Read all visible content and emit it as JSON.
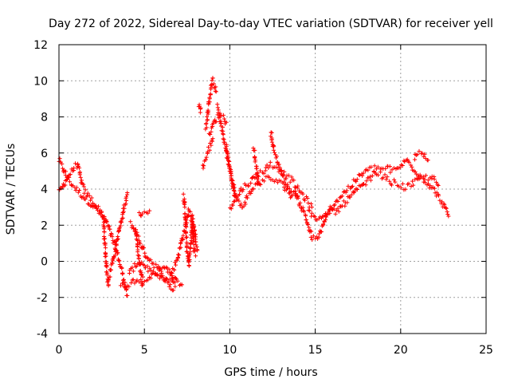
{
  "chart_data": {
    "type": "scatter",
    "title": "Day 272 of 2022, Sidereal Day-to-day VTEC variation (SDTVAR) for receiver yell",
    "xlabel": "GPS time / hours",
    "ylabel": "SDTVAR / TECUs",
    "xlim": [
      0,
      25
    ],
    "ylim": [
      -4,
      12
    ],
    "xticks": [
      "0",
      "5",
      "10",
      "15",
      "20",
      "25"
    ],
    "yticks": [
      "-4",
      "-2",
      "0",
      "2",
      "4",
      "6",
      "8",
      "10",
      "12"
    ],
    "grid": true,
    "marker": "+",
    "series": [
      {
        "name": "SDTVAR",
        "color": "#ff0000",
        "segments": [
          {
            "x": [
              0.0,
              0.2,
              0.5,
              0.9,
              1.4,
              2.0,
              2.5,
              2.9,
              3.3,
              3.7,
              4.0
            ],
            "y": [
              5.6,
              5.2,
              4.6,
              4.1,
              3.6,
              3.1,
              2.6,
              1.9,
              0.8,
              -0.6,
              -1.9
            ]
          },
          {
            "x": [
              0.0,
              0.3,
              0.6,
              0.9,
              1.1
            ],
            "y": [
              3.8,
              4.3,
              4.8,
              5.2,
              5.4
            ]
          },
          {
            "x": [
              1.1,
              1.2,
              1.3,
              1.5,
              1.9,
              2.3,
              2.6,
              2.8
            ],
            "y": [
              5.3,
              4.9,
              4.4,
              3.9,
              3.4,
              2.9,
              2.5,
              2.2
            ]
          },
          {
            "x": [
              2.6,
              2.7,
              2.8,
              2.9
            ],
            "y": [
              2.4,
              0.6,
              -0.6,
              -1.3
            ]
          },
          {
            "x": [
              2.9,
              3.2,
              3.5,
              3.8,
              4.0
            ],
            "y": [
              -1.0,
              0.2,
              1.6,
              2.9,
              3.8
            ]
          },
          {
            "x": [
              3.6,
              3.9,
              4.2,
              4.5,
              4.8,
              5.1,
              5.4,
              5.8,
              6.2,
              6.6,
              6.9,
              7.2
            ],
            "y": [
              -1.4,
              -1.3,
              -1.2,
              -1.0,
              -1.0,
              -0.9,
              -0.8,
              -0.9,
              -1.0,
              -0.9,
              -1.1,
              -1.3
            ]
          },
          {
            "x": [
              4.1,
              4.4,
              4.7,
              5.0,
              5.3,
              5.6,
              5.9,
              6.2,
              6.5,
              6.8
            ],
            "y": [
              -0.7,
              -0.3,
              0.0,
              -0.2,
              -0.5,
              -0.8,
              -0.6,
              -0.3,
              -0.7,
              -1.4
            ]
          },
          {
            "x": [
              4.2,
              4.4,
              4.6,
              4.8,
              5.0,
              5.2,
              5.5,
              5.8,
              6.1,
              6.4,
              6.7
            ],
            "y": [
              2.1,
              1.8,
              1.4,
              0.9,
              0.5,
              0.2,
              -0.1,
              -0.4,
              -0.8,
              -1.2,
              -1.6
            ]
          },
          {
            "x": [
              4.5,
              4.6,
              4.7,
              4.8,
              4.9
            ],
            "y": [
              1.7,
              0.9,
              0.0,
              -0.7,
              -1.3
            ]
          },
          {
            "x": [
              4.7,
              4.9,
              5.1,
              5.3
            ],
            "y": [
              2.8,
              2.6,
              2.7,
              2.8
            ]
          },
          {
            "x": [
              6.6,
              6.8,
              7.0,
              7.2,
              7.4,
              7.6,
              7.8,
              8.0
            ],
            "y": [
              -0.7,
              -0.2,
              0.4,
              1.2,
              2.0,
              2.8,
              2.3,
              1.5
            ]
          },
          {
            "x": [
              7.3,
              7.4,
              7.5,
              7.6,
              7.7,
              7.8,
              7.9,
              8.0
            ],
            "y": [
              3.6,
              2.2,
              0.6,
              -0.2,
              0.9,
              2.1,
              0.7,
              0.3
            ]
          },
          {
            "x": [
              7.8,
              7.9,
              8.0,
              8.1
            ],
            "y": [
              2.6,
              1.7,
              1.0,
              0.6
            ]
          },
          {
            "x": [
              8.2,
              8.25,
              8.3
            ],
            "y": [
              8.7,
              8.4,
              8.5
            ]
          },
          {
            "x": [
              8.4,
              8.6,
              8.8,
              9.0
            ],
            "y": [
              5.2,
              5.7,
              6.3,
              6.8
            ]
          },
          {
            "x": [
              8.6,
              8.7,
              8.8,
              8.9,
              9.0,
              9.1,
              9.2
            ],
            "y": [
              7.4,
              8.1,
              8.9,
              9.6,
              10.1,
              9.7,
              9.4
            ]
          },
          {
            "x": [
              8.8,
              9.0,
              9.2,
              9.4,
              9.6,
              9.8
            ],
            "y": [
              7.1,
              7.5,
              7.9,
              8.1,
              8.0,
              7.7
            ]
          },
          {
            "x": [
              9.3,
              9.5,
              9.7,
              9.9,
              10.1,
              10.3
            ],
            "y": [
              8.6,
              7.6,
              6.6,
              5.6,
              4.6,
              3.6
            ]
          },
          {
            "x": [
              9.8,
              10.0,
              10.2,
              10.4,
              10.7,
              11.0,
              11.4,
              11.8,
              12.2,
              12.6,
              13.0,
              13.5,
              14.0
            ],
            "y": [
              6.3,
              5.1,
              4.2,
              3.4,
              3.0,
              3.5,
              4.1,
              4.4,
              4.6,
              4.5,
              4.3,
              3.9,
              3.5
            ]
          },
          {
            "x": [
              10.0,
              10.4,
              10.8,
              11.2,
              11.6,
              12.0,
              12.4,
              12.8,
              13.2,
              13.6,
              14.0,
              14.4,
              14.8
            ],
            "y": [
              3.0,
              3.6,
              4.1,
              4.4,
              4.8,
              5.0,
              5.4,
              5.2,
              4.8,
              4.5,
              4.0,
              3.5,
              3.0
            ]
          },
          {
            "x": [
              11.4,
              11.5,
              11.6,
              11.7
            ],
            "y": [
              6.2,
              5.6,
              4.9,
              4.3
            ]
          },
          {
            "x": [
              12.4,
              12.5,
              12.6,
              12.8,
              13.0,
              13.3,
              13.6
            ],
            "y": [
              7.2,
              6.6,
              6.0,
              5.5,
              5.0,
              4.3,
              3.6
            ]
          },
          {
            "x": [
              13.8,
              14.0,
              14.2,
              14.4,
              14.6,
              14.8,
              15.0,
              15.2,
              15.4,
              15.6
            ],
            "y": [
              3.9,
              3.4,
              3.0,
              2.6,
              2.0,
              1.3,
              1.2,
              1.4,
              1.8,
              2.3
            ]
          },
          {
            "x": [
              14.6,
              14.9,
              15.2,
              15.5,
              15.8,
              16.1
            ],
            "y": [
              2.8,
              2.5,
              2.3,
              2.5,
              2.7,
              2.9
            ]
          },
          {
            "x": [
              15.6,
              15.9,
              16.2,
              16.5,
              16.8,
              17.1,
              17.4,
              17.7,
              18.0,
              18.3,
              18.6,
              18.9,
              19.2,
              19.5,
              19.8,
              20.1,
              20.4,
              20.7,
              21.0,
              21.3,
              21.6,
              21.9,
              22.2,
              22.5,
              22.8
            ],
            "y": [
              2.4,
              2.9,
              3.3,
              3.6,
              3.9,
              4.2,
              4.5,
              4.8,
              5.0,
              5.1,
              5.2,
              5.1,
              5.2,
              5.0,
              5.1,
              5.4,
              5.6,
              5.2,
              4.9,
              4.6,
              4.3,
              4.0,
              3.6,
              3.1,
              2.5
            ]
          },
          {
            "x": [
              16.2,
              16.6,
              17.0,
              17.4,
              17.8,
              18.2,
              18.6,
              19.0,
              19.4,
              19.8,
              20.2,
              20.6,
              21.0,
              21.4,
              21.8,
              22.2
            ],
            "y": [
              2.7,
              3.1,
              3.5,
              3.9,
              4.2,
              4.6,
              4.9,
              4.7,
              4.4,
              4.3,
              4.1,
              4.2,
              4.5,
              4.6,
              4.7,
              4.2
            ]
          },
          {
            "x": [
              20.8,
              21.0,
              21.2,
              21.4,
              21.6
            ],
            "y": [
              5.7,
              5.9,
              6.0,
              5.8,
              5.6
            ]
          }
        ]
      }
    ]
  }
}
